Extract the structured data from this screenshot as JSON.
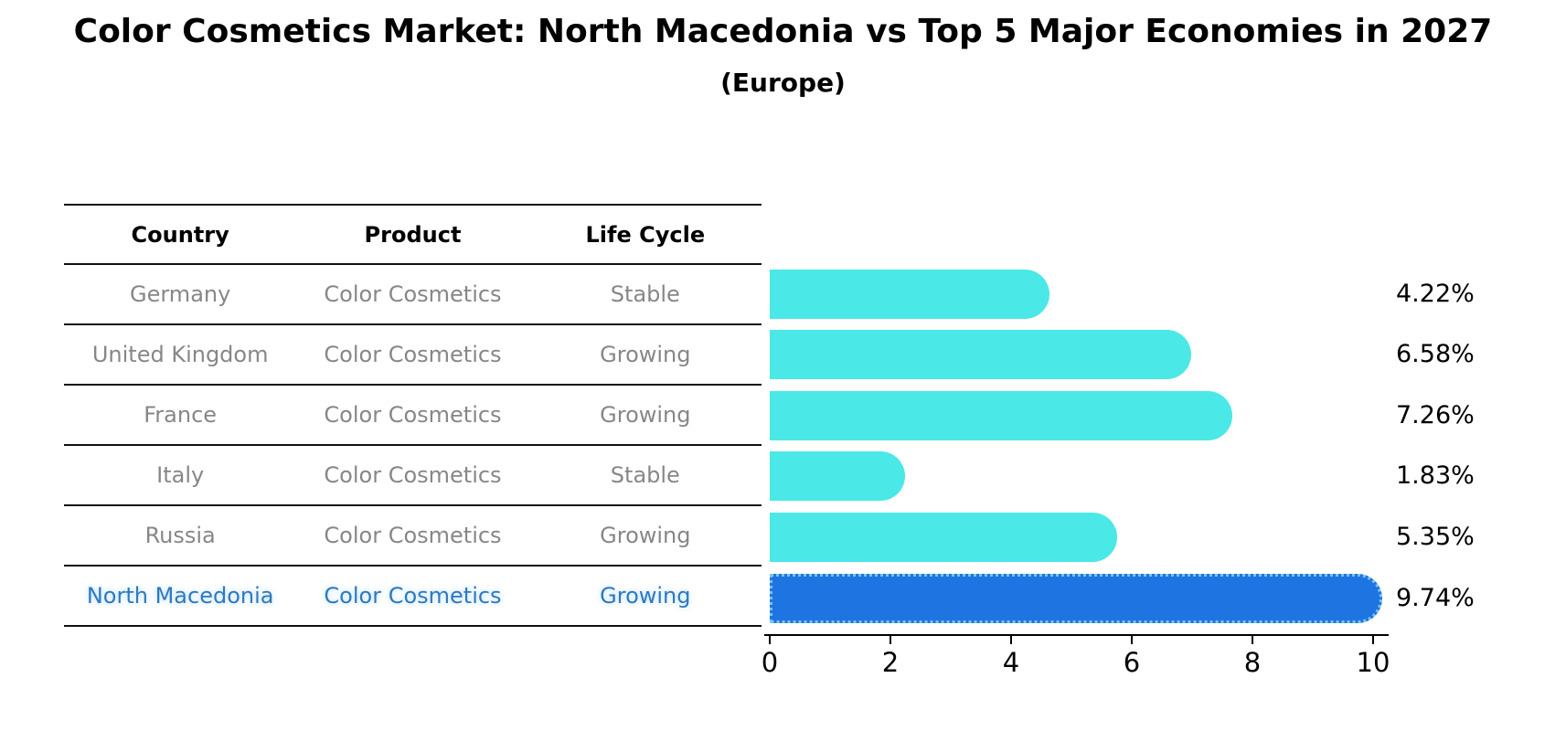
{
  "chart_data": {
    "type": "bar",
    "orientation": "horizontal",
    "title": "Color Cosmetics Market: North Macedonia vs Top 5 Major Economies in 2027",
    "subtitle": "(Europe)",
    "categories": [
      "Germany",
      "United Kingdom",
      "France",
      "Italy",
      "Russia",
      "North Macedonia"
    ],
    "values": [
      4.22,
      6.58,
      7.26,
      1.83,
      5.35,
      9.74
    ],
    "value_labels": [
      "4.22%",
      "6.58%",
      "7.26%",
      "1.83%",
      "5.35%",
      "9.74%"
    ],
    "xlim": [
      0,
      10
    ],
    "x_ticks": [
      "0",
      "2",
      "4",
      "6",
      "8",
      "10"
    ],
    "grid": false,
    "legend": false,
    "bar_color": "#4AE8E6",
    "highlight_index": 5,
    "highlight_color": "#1E75E1",
    "highlight_edge_color": "#7AC4EF"
  },
  "table": {
    "headers": [
      "Country",
      "Product",
      "Life Cycle"
    ],
    "rows": [
      {
        "country": "Germany",
        "product": "Color Cosmetics",
        "life_cycle": "Stable",
        "highlighted": false
      },
      {
        "country": "United Kingdom",
        "product": "Color Cosmetics",
        "life_cycle": "Growing",
        "highlighted": false
      },
      {
        "country": "France",
        "product": "Color Cosmetics",
        "life_cycle": "Growing",
        "highlighted": false
      },
      {
        "country": "Italy",
        "product": "Color Cosmetics",
        "life_cycle": "Stable",
        "highlighted": false
      },
      {
        "country": "Russia",
        "product": "Color Cosmetics",
        "life_cycle": "Growing",
        "highlighted": false
      },
      {
        "country": "North Macedonia",
        "product": "Color Cosmetics",
        "life_cycle": "Growing",
        "highlighted": true
      }
    ],
    "text_color": "#878787",
    "header_text_color": "#000000",
    "highlight_text_color": "#2E79C0"
  }
}
